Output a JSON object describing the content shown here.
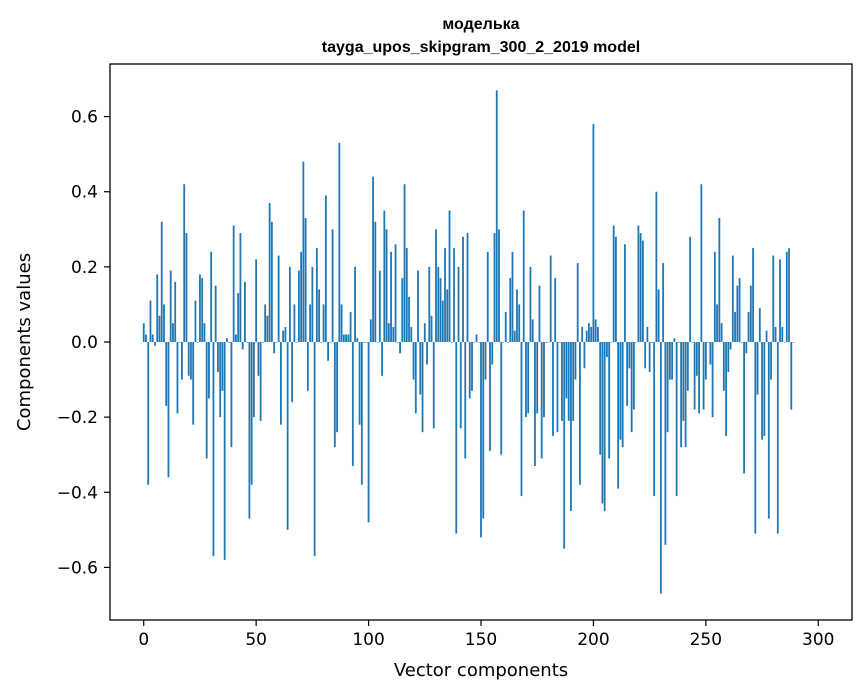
{
  "chart_data": {
    "type": "bar",
    "title": "моделька",
    "subtitle": "tayga_upos_skipgram_300_2_2019 model",
    "xlabel": "Vector components",
    "ylabel": "Components values",
    "xlim": [
      -15,
      315
    ],
    "ylim": [
      -0.74,
      0.74
    ],
    "xticks": [
      0,
      50,
      100,
      150,
      200,
      250,
      300
    ],
    "yticks": [
      -0.6,
      -0.4,
      -0.2,
      0.0,
      0.2,
      0.4,
      0.6
    ],
    "ytick_labels": [
      "−0.6",
      "−0.4",
      "−0.2",
      "0.0",
      "0.2",
      "0.4",
      "0.6"
    ],
    "bar_color": "#1f77b4",
    "values": [
      0.05,
      0.02,
      -0.38,
      0.11,
      0.02,
      -0.01,
      0.18,
      0.07,
      0.32,
      0.1,
      -0.17,
      -0.36,
      0.19,
      0.05,
      0.16,
      -0.19,
      0.0,
      -0.1,
      0.42,
      0.29,
      -0.09,
      -0.1,
      -0.22,
      0.11,
      0.0,
      0.18,
      0.17,
      0.05,
      -0.31,
      -0.15,
      0.24,
      -0.57,
      0.15,
      -0.08,
      -0.2,
      -0.13,
      -0.58,
      0.01,
      0.0,
      -0.28,
      0.31,
      0.02,
      0.13,
      0.29,
      -0.02,
      0.16,
      0.0,
      -0.47,
      -0.38,
      -0.2,
      0.22,
      -0.09,
      -0.21,
      0.0,
      0.1,
      0.07,
      0.37,
      0.32,
      -0.03,
      0.0,
      0.23,
      -0.22,
      0.03,
      0.04,
      -0.5,
      0.2,
      -0.16,
      0.1,
      0.0,
      0.19,
      0.24,
      0.48,
      0.33,
      -0.13,
      0.1,
      0.2,
      -0.57,
      0.25,
      0.14,
      0.0,
      0.1,
      0.39,
      -0.05,
      0.0,
      0.3,
      -0.28,
      -0.24,
      0.53,
      0.1,
      0.02,
      0.02,
      0.02,
      0.08,
      -0.33,
      0.2,
      0.01,
      -0.22,
      -0.38,
      0.0,
      0.0,
      -0.48,
      0.06,
      0.44,
      0.32,
      0.0,
      0.19,
      -0.09,
      0.35,
      0.3,
      0.05,
      0.24,
      0.04,
      0.26,
      0.0,
      -0.03,
      0.17,
      0.42,
      0.25,
      0.12,
      0.04,
      -0.1,
      -0.19,
      0.19,
      -0.14,
      -0.24,
      0.05,
      -0.06,
      0.2,
      0.07,
      -0.23,
      0.3,
      0.2,
      0.17,
      0.11,
      0.25,
      0.14,
      0.35,
      0.0,
      0.25,
      -0.51,
      0.2,
      -0.23,
      0.28,
      -0.31,
      0.29,
      -0.15,
      -0.13,
      0.0,
      0.02,
      0.0,
      -0.52,
      -0.47,
      -0.1,
      0.24,
      -0.29,
      -0.06,
      0.29,
      0.67,
      0.3,
      -0.3,
      0.0,
      0.08,
      0.0,
      0.17,
      0.24,
      0.03,
      0.14,
      0.1,
      -0.41,
      0.35,
      -0.2,
      -0.19,
      0.2,
      0.06,
      -0.33,
      -0.19,
      0.15,
      -0.31,
      -0.2,
      0.0,
      0.0,
      0.23,
      -0.25,
      0.17,
      -0.24,
      0.0,
      -0.21,
      -0.55,
      -0.15,
      -0.21,
      -0.45,
      -0.21,
      -0.1,
      0.21,
      -0.38,
      0.04,
      -0.07,
      0.03,
      0.05,
      0.04,
      0.58,
      0.06,
      0.04,
      -0.3,
      -0.43,
      -0.45,
      -0.04,
      -0.31,
      0.0,
      0.31,
      0.28,
      -0.39,
      -0.26,
      -0.28,
      0.26,
      -0.17,
      -0.07,
      -0.24,
      -0.18,
      0.0,
      0.31,
      0.29,
      0.27,
      -0.07,
      0.04,
      -0.08,
      0.0,
      -0.41,
      0.4,
      0.14,
      -0.67,
      0.21,
      -0.54,
      -0.24,
      -0.1,
      -0.1,
      0.01,
      -0.41,
      0.0,
      -0.28,
      -0.21,
      -0.28,
      -0.13,
      0.28,
      0.0,
      -0.18,
      -0.09,
      -0.19,
      0.42,
      -0.18,
      -0.1,
      0.0,
      -0.06,
      -0.2,
      0.24,
      0.1,
      0.33,
      0.05,
      -0.13,
      -0.25,
      -0.08,
      -0.02,
      0.23,
      0.08,
      0.15,
      0.17,
      0.0,
      -0.35,
      -0.03,
      0.08,
      0.15,
      0.25,
      -0.51,
      -0.14,
      0.09,
      -0.26,
      -0.25,
      0.03,
      -0.47,
      -0.1,
      0.23,
      0.04,
      -0.51,
      0.22,
      0.04,
      0.0,
      0.24,
      0.25,
      -0.18,
      0.0
    ]
  }
}
